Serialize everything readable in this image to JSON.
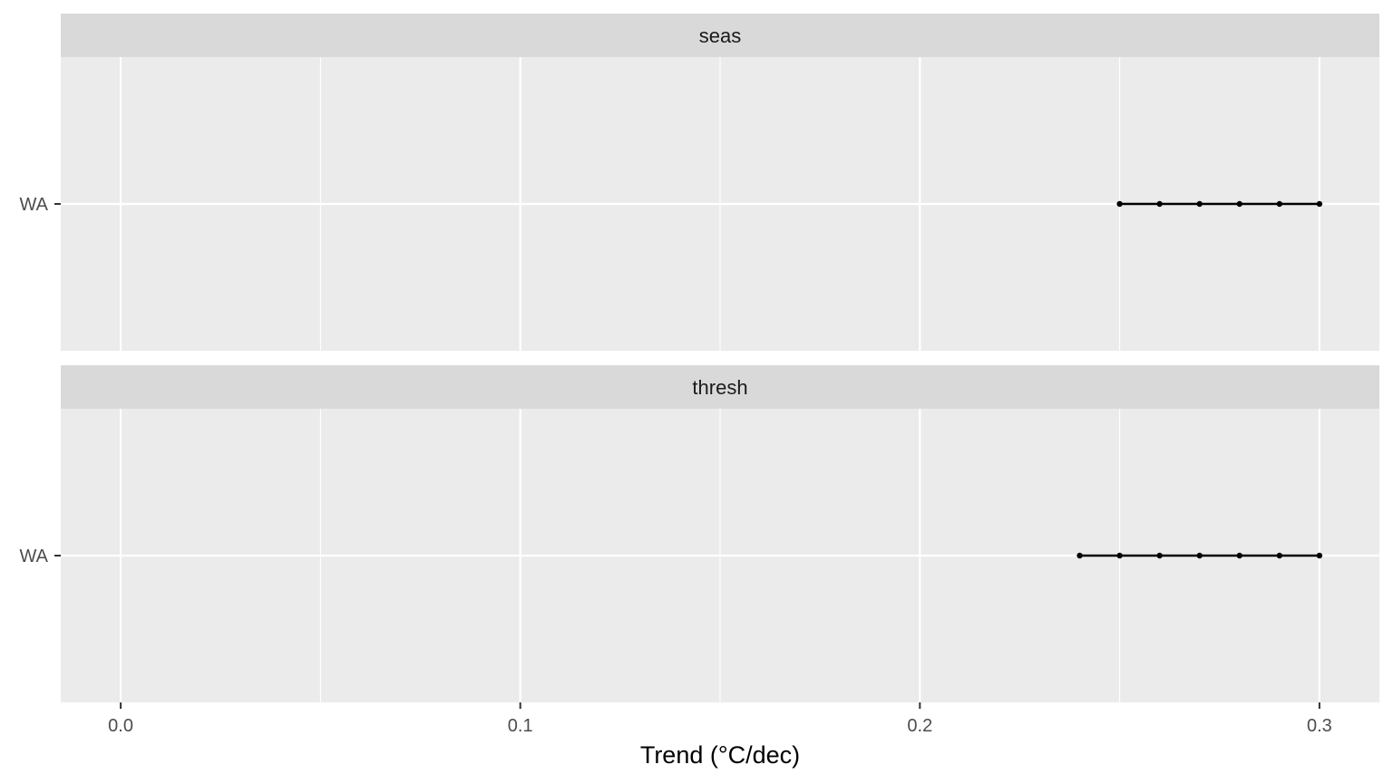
{
  "chart_data": {
    "type": "scatter",
    "xlabel": "Trend (°C/dec)",
    "ylabel": "",
    "xlim": [
      -0.015,
      0.315
    ],
    "x_ticks": [
      {
        "value": 0.0,
        "label": "0.0"
      },
      {
        "value": 0.1,
        "label": "0.1"
      },
      {
        "value": 0.2,
        "label": "0.2"
      },
      {
        "value": 0.3,
        "label": "0.3"
      }
    ],
    "x_minor_ticks": [
      0.05,
      0.15,
      0.25
    ],
    "grid": true,
    "categories": [
      "WA"
    ],
    "colors": {
      "panel_bg": "#ebebeb",
      "strip_bg": "#d9d9d9",
      "grid": "#ffffff",
      "series": "#000000",
      "tick": "#333333"
    },
    "facets": [
      {
        "label": "seas",
        "series": [
          {
            "category": "WA",
            "x": [
              0.25,
              0.26,
              0.27,
              0.28,
              0.29,
              0.3
            ]
          }
        ]
      },
      {
        "label": "thresh",
        "series": [
          {
            "category": "WA",
            "x": [
              0.24,
              0.25,
              0.26,
              0.27,
              0.28,
              0.29,
              0.3
            ]
          }
        ]
      }
    ]
  }
}
